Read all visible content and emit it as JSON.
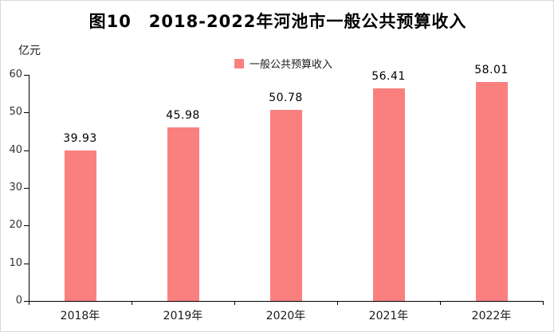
{
  "title": "图10　2018-2022年河池市一般公共预算收入",
  "unit_label": "亿元",
  "legend": {
    "label": "一般公共预算收入",
    "swatch_color": "#FA8080"
  },
  "chart_data": {
    "type": "bar",
    "title": "图10　2018-2022年河池市一般公共预算收入",
    "categories": [
      "2018年",
      "2019年",
      "2020年",
      "2021年",
      "2022年"
    ],
    "values": [
      39.93,
      45.98,
      50.78,
      56.41,
      58.01
    ],
    "data_labels": [
      "39.93",
      "45.98",
      "50.78",
      "56.41",
      "58.01"
    ],
    "xlabel": "",
    "ylabel": "亿元",
    "ylim": [
      0,
      60
    ],
    "ytick_step": 10,
    "ytick_labels": [
      "0",
      "10",
      "20",
      "30",
      "40",
      "50",
      "60"
    ],
    "grid": false,
    "legend": [
      "一般公共预算收入"
    ],
    "legend_position": "top-center",
    "bar_color": "#FA8080",
    "axis_color": "#000000"
  }
}
